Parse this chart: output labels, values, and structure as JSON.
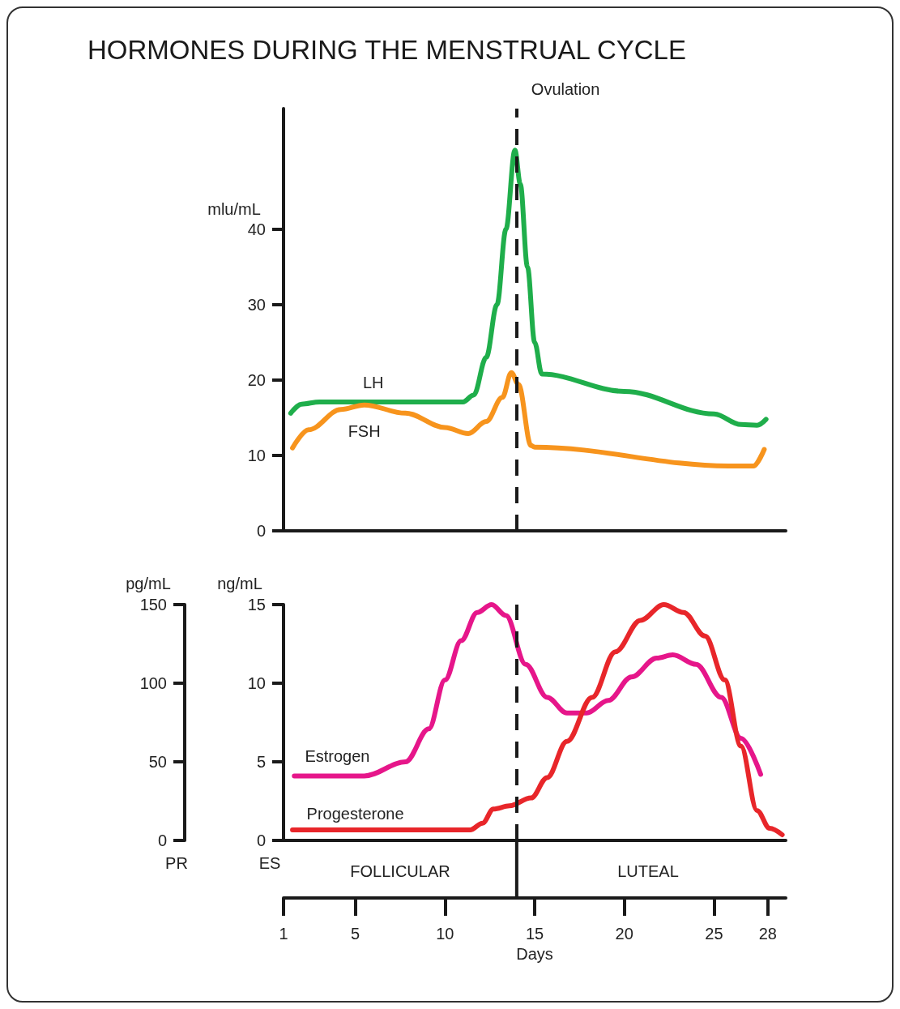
{
  "chart_data": [
    {
      "type": "line",
      "title": "HORMONES DURING THE MENSTRUAL CYCLE",
      "ylabel": "mlu/mL",
      "xlim": [
        1,
        29
      ],
      "ylim": [
        0,
        56
      ],
      "yticks": [
        0,
        10,
        20,
        30,
        40
      ],
      "tick_labels": "y",
      "ref_lines": [
        {
          "axis": "x",
          "value": 14,
          "label": "Ovulation",
          "line_style": "dashed",
          "color": "#1a1a1a"
        }
      ],
      "series": [
        {
          "name": "LH",
          "color": "#1fae4b",
          "x": [
            1.4,
            2,
            3,
            6,
            11,
            11.6,
            12.3,
            12.9,
            13.4,
            13.9,
            14.2,
            14.6,
            15,
            15.4,
            20,
            25,
            26.5,
            27.4,
            27.9
          ],
          "values": [
            15.6,
            16.8,
            17.1,
            17.1,
            17.1,
            18,
            23,
            30,
            40,
            50.5,
            46,
            35,
            25,
            20.8,
            18.5,
            15.5,
            14.1,
            14,
            14.8
          ]
        },
        {
          "name": "FSH",
          "color": "#f7941d",
          "x": [
            1.5,
            2.4,
            4.2,
            5.5,
            7.8,
            10,
            11.3,
            12.3,
            13.2,
            13.7,
            14.1,
            14.8,
            15,
            25.8,
            27.2,
            27.8
          ],
          "values": [
            11,
            13.4,
            16.1,
            16.7,
            15.6,
            13.7,
            12.9,
            14.5,
            17.7,
            21,
            19.4,
            11.3,
            11.1,
            8.6,
            8.6,
            10.8
          ]
        }
      ]
    },
    {
      "type": "line",
      "xlabel": "Days",
      "ylabel": "pg/mL",
      "y2label": "ng/mL",
      "xlim": [
        1,
        29
      ],
      "xticks": [
        1,
        5,
        10,
        15,
        20,
        25,
        28
      ],
      "ylim": [
        0,
        150
      ],
      "yticks": [
        0,
        50,
        100,
        150
      ],
      "y2lim": [
        0,
        15
      ],
      "y2ticks": [
        0,
        5,
        10,
        15
      ],
      "annotations": [
        "PR",
        "ES",
        "FOLLICULAR",
        "LUTEAL"
      ],
      "ref_lines": [
        {
          "axis": "x",
          "value": 14,
          "line_style": "dashed",
          "color": "#1a1a1a"
        }
      ],
      "series": [
        {
          "name": "Estrogen",
          "color": "#e6168a",
          "x": [
            1.6,
            4,
            5.5,
            7.8,
            9.1,
            10,
            10.9,
            11.8,
            12.6,
            13.4,
            14.5,
            15.7,
            16.8,
            17.9,
            19.1,
            20.4,
            21.8,
            22.7,
            24,
            25.4,
            26.5,
            27.6
          ],
          "values": [
            41,
            41,
            41,
            50,
            71,
            102,
            127,
            145,
            150,
            143,
            112,
            91,
            81,
            81,
            89,
            104,
            116,
            118,
            112,
            91,
            65,
            42
          ]
        },
        {
          "name": "Progesterone",
          "color": "#e8262a",
          "axis": "y2",
          "x": [
            1.5,
            5,
            11.4,
            12.1,
            12.7,
            13.6,
            14.8,
            15.7,
            16.8,
            18.2,
            19.5,
            20.9,
            22.2,
            23.3,
            24.5,
            25.6,
            26.5,
            27.4,
            28.1,
            28.8
          ],
          "values": [
            0.67,
            0.67,
            0.67,
            1.1,
            2,
            2.2,
            2.7,
            4,
            6.3,
            9.1,
            12,
            14,
            15,
            14.5,
            13,
            10.2,
            6,
            1.9,
            0.77,
            0.36
          ]
        }
      ]
    }
  ]
}
